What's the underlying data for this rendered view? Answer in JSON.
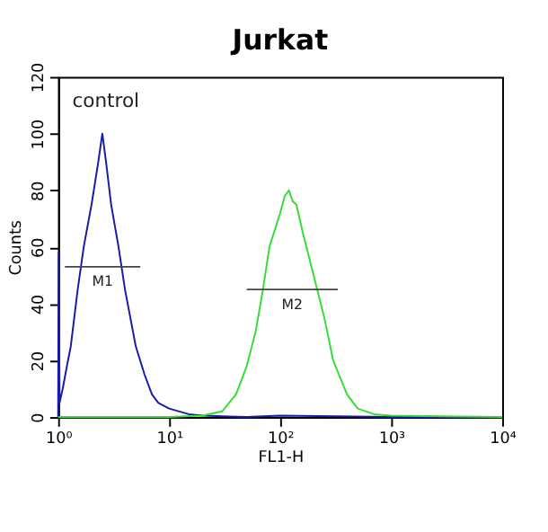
{
  "chart_data": {
    "type": "line",
    "title": "Jurkat",
    "xlabel": "FL1-H",
    "ylabel": "Counts",
    "log": "x",
    "xlim": [
      1,
      10000
    ],
    "ylim": [
      0,
      120
    ],
    "xticks": [
      {
        "value": 1,
        "label": "10⁰"
      },
      {
        "value": 10,
        "label": "10¹"
      },
      {
        "value": 100,
        "label": "10²"
      },
      {
        "value": 1000,
        "label": "10³"
      },
      {
        "value": 10000,
        "label": "10⁴"
      }
    ],
    "yticks": [
      0,
      20,
      40,
      60,
      80,
      100,
      120
    ],
    "grid": false,
    "legend": false,
    "marker": "none",
    "line_style": "solid",
    "series": [
      {
        "color": "#1a1aa8",
        "x": [
          1.0,
          1.01,
          1.03,
          1.1,
          1.2,
          1.3,
          1.5,
          1.7,
          2.0,
          2.3,
          2.5,
          2.7,
          3.0,
          3.5,
          4,
          5,
          6,
          7,
          8,
          10,
          15,
          20,
          50,
          100,
          1000,
          10000
        ],
        "values": [
          0,
          58,
          5,
          10,
          18,
          25,
          45,
          60,
          75,
          90,
          100,
          90,
          75,
          60,
          45,
          25,
          15,
          8,
          5,
          3,
          1,
          0.5,
          0,
          0.5,
          0,
          0
        ]
      },
      {
        "color": "#33dd33",
        "x": [
          1,
          5,
          10,
          20,
          30,
          40,
          50,
          60,
          70,
          80,
          100,
          110,
          120,
          130,
          140,
          160,
          200,
          250,
          300,
          400,
          500,
          700,
          1000,
          10000
        ],
        "values": [
          0,
          0,
          0,
          0.5,
          2,
          8,
          18,
          30,
          45,
          60,
          72,
          78,
          80,
          76,
          75,
          65,
          50,
          35,
          20,
          8,
          3,
          1,
          0.5,
          0
        ]
      },
      {
        "color": "#444444",
        "x": [
          1.15,
          5.5
        ],
        "values": [
          53,
          53
        ]
      },
      {
        "color": "#444444",
        "x": [
          50,
          330
        ],
        "values": [
          45,
          45
        ]
      }
    ],
    "annotations": [
      "control",
      "M1",
      "M2"
    ]
  }
}
